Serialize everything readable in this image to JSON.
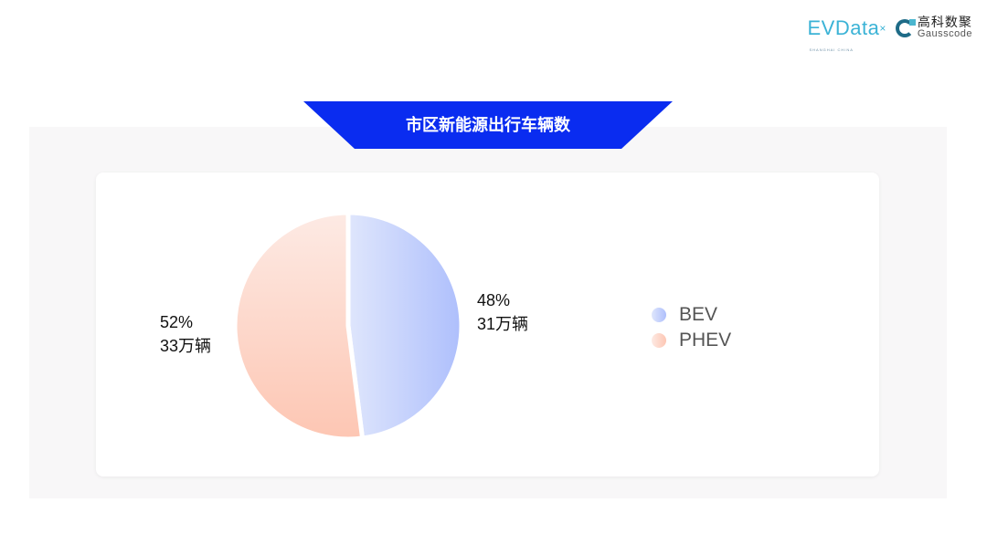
{
  "logos": {
    "evdata": {
      "text": "EVData",
      "x": "×",
      "sub": "SHANGHAI CHINA"
    },
    "gausscode": {
      "cn": "高科数聚",
      "en": "Gausscode"
    }
  },
  "header": {
    "title": "市区新能源出行车辆数",
    "banner_color": "#0a2cf0"
  },
  "chart_data": {
    "type": "pie",
    "title": "市区新能源出行车辆数",
    "legend_position": "right",
    "slices": [
      {
        "name": "BEV",
        "percent": 48,
        "value_label": "31万辆",
        "pct_label": "48%",
        "color_from": "#dfe6fc",
        "color_to": "#aebffc"
      },
      {
        "name": "PHEV",
        "percent": 52,
        "value_label": "33万辆",
        "pct_label": "52%",
        "color_from": "#fdeae4",
        "color_to": "#fdc6b3"
      }
    ],
    "start": "top",
    "direction": "clockwise"
  }
}
